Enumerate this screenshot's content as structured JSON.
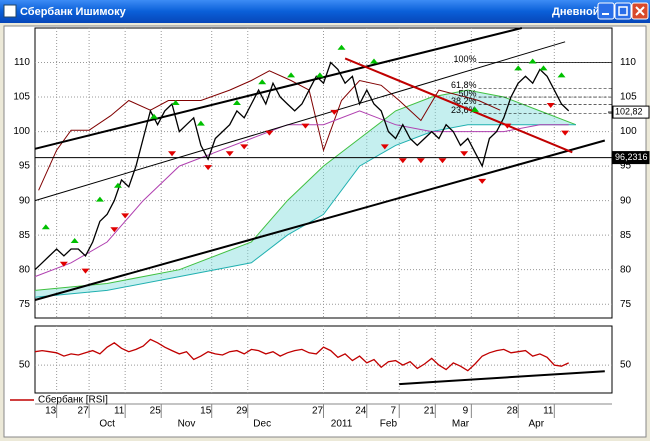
{
  "window_title": "Сбербанк Ишимоку",
  "timeframe": "Дневной",
  "chart_data": [
    {
      "type": "line",
      "xlim": [
        0,
        160
      ],
      "xticks": [
        {
          "value": 6,
          "label": "13"
        },
        {
          "value": 15,
          "label": "27"
        },
        {
          "value": 25,
          "label": "11"
        },
        {
          "value": 35,
          "label": "25"
        },
        {
          "value": 49,
          "label": "15"
        },
        {
          "value": 59,
          "label": "29"
        },
        {
          "value": 80,
          "label": "27"
        },
        {
          "value": 92,
          "label": "24"
        },
        {
          "value": 101,
          "label": "7"
        },
        {
          "value": 111,
          "label": "21"
        },
        {
          "value": 121,
          "label": "9"
        },
        {
          "value": 134,
          "label": "28"
        },
        {
          "value": 144,
          "label": "11"
        }
      ],
      "month_ticks": [
        {
          "value": 20,
          "label": "Oct"
        },
        {
          "value": 42,
          "label": "Nov"
        },
        {
          "value": 63,
          "label": "Dec"
        },
        {
          "value": 85,
          "label": "2011"
        },
        {
          "value": 98,
          "label": "Feb"
        },
        {
          "value": 118,
          "label": "Mar"
        },
        {
          "value": 139,
          "label": "Apr"
        }
      ],
      "ylim": [
        73,
        115
      ],
      "yticks": [
        75,
        80,
        85,
        90,
        95,
        100,
        105,
        110
      ],
      "grid": true,
      "series": [
        {
          "color": "#000000",
          "x": [
            0,
            2,
            4,
            6,
            8,
            10,
            12,
            14,
            16,
            18,
            20,
            22,
            24,
            26,
            28,
            30,
            32,
            34,
            36,
            38,
            40,
            42,
            44,
            46,
            48,
            50,
            52,
            54,
            56,
            58,
            60,
            62,
            64,
            66,
            68,
            70,
            72,
            74,
            76,
            78,
            80,
            82,
            84,
            86,
            88,
            90,
            92,
            94,
            96,
            98,
            100,
            102,
            104,
            106,
            108,
            110,
            112,
            114,
            116,
            118,
            120,
            122,
            124,
            126,
            128,
            130,
            132,
            134,
            136,
            138,
            140,
            142,
            144,
            146,
            148
          ],
          "values": [
            80,
            81,
            82,
            83,
            82,
            83,
            83,
            82,
            84,
            87,
            88,
            90,
            93,
            92,
            95,
            99,
            103,
            101,
            103,
            104,
            100,
            101,
            102,
            98,
            96,
            99,
            100,
            101,
            103,
            102,
            104,
            106,
            104,
            107,
            105,
            104,
            103,
            104,
            106,
            108,
            107,
            110,
            109,
            107,
            108,
            104,
            106,
            104,
            103,
            100,
            99,
            101,
            99,
            98,
            99,
            100,
            99,
            101,
            100,
            98,
            99,
            97,
            95,
            99,
            100,
            102,
            105,
            107,
            108,
            107,
            109,
            108,
            106,
            104,
            103
          ]
        }
      ],
      "lines": [
        {
          "color": "#800000",
          "x": [
            1,
            6,
            10,
            15,
            21,
            26,
            32,
            37,
            46,
            54,
            60,
            65,
            71,
            76,
            80,
            85,
            90,
            96,
            101,
            107,
            112,
            118,
            123,
            129
          ],
          "values": [
            91.5,
            97.3,
            100.2,
            100.2,
            102.3,
            104.5,
            103.1,
            104.5,
            104.5,
            106,
            107.4,
            108.8,
            107.4,
            106,
            97.3,
            104.5,
            107.4,
            106.7,
            104.5,
            101.6,
            106,
            105.2,
            104.5,
            103.1
          ]
        },
        {
          "color": "#b040b0",
          "x": [
            0,
            10,
            20,
            30,
            40,
            50,
            60,
            70,
            80,
            90,
            100,
            110,
            120,
            130,
            140,
            148
          ],
          "values": [
            79,
            81,
            84,
            90,
            95,
            97,
            99,
            101,
            101,
            103,
            101,
            100,
            100,
            100,
            101,
            101
          ]
        }
      ],
      "cloud": {
        "color": "#7fdcdc",
        "span_a": {
          "color": "#40c040",
          "x": [
            0,
            20,
            40,
            60,
            70,
            80,
            90,
            100,
            110,
            120,
            130,
            140,
            150
          ],
          "values": [
            77,
            78,
            80,
            84,
            90,
            95,
            99,
            103,
            105,
            106,
            105,
            103,
            101
          ]
        },
        "span_b": {
          "color": "#20b0b0",
          "x": [
            0,
            20,
            40,
            60,
            70,
            80,
            90,
            100,
            110,
            120,
            130,
            140,
            150
          ],
          "values": [
            76,
            77,
            79,
            81,
            85,
            88,
            95,
            98,
            100,
            101,
            101,
            101,
            101
          ]
        }
      },
      "trend_lines": [
        {
          "color": "#000000",
          "x": [
            0,
            135
          ],
          "values": [
            97.5,
            115
          ]
        },
        {
          "color": "#000000",
          "x": [
            0,
            158
          ],
          "values": [
            75.6,
            98.7
          ]
        },
        {
          "color": "#000000",
          "x": [
            0,
            147
          ],
          "values": [
            90,
            113
          ]
        },
        {
          "color": "#c00000",
          "x": [
            86,
            149
          ],
          "values": [
            110.6,
            97
          ]
        }
      ],
      "up_signals": {
        "color": "#00c000",
        "x": [
          3,
          11,
          18,
          23,
          33,
          39,
          46,
          56,
          63,
          71,
          79,
          85,
          94,
          122,
          134,
          138,
          141,
          146
        ],
        "values": [
          86,
          84,
          90,
          92,
          102,
          104,
          101,
          104,
          107,
          108,
          108,
          112,
          110,
          103,
          109,
          110,
          109,
          108
        ]
      },
      "down_signals": {
        "color": "#e00000",
        "x": [
          8,
          14,
          22,
          25,
          38,
          48,
          54,
          58,
          65,
          75,
          83,
          97,
          102,
          107,
          113,
          119,
          124,
          131,
          143,
          147
        ],
        "values": [
          81,
          80,
          86,
          88,
          97,
          95,
          97,
          98,
          100,
          101,
          103,
          98,
          96,
          96,
          96,
          97,
          93,
          101,
          104,
          100
        ]
      },
      "fib_range": [
        123,
        160
      ],
      "fib_levels": [
        {
          "value": 110,
          "label": "100%"
        },
        {
          "value": 106.2,
          "label": "61,8%"
        },
        {
          "value": 105,
          "label": "50%"
        },
        {
          "value": 103.9,
          "label": "38,2%"
        },
        {
          "value": 102.6,
          "label": "23,6%"
        }
      ],
      "price_labels": [
        {
          "value": 102.82,
          "label": "102,82"
        },
        {
          "value": 96.2316,
          "label": "96,2316"
        }
      ]
    },
    {
      "type": "line",
      "xlim": [
        0,
        160
      ],
      "ylim": [
        25,
        85
      ],
      "yticks": [
        50
      ],
      "series": [
        {
          "name": "Сбербанк [RSI]",
          "color": "#c00000",
          "x": [
            0,
            2,
            4,
            6,
            8,
            10,
            12,
            14,
            16,
            18,
            20,
            22,
            24,
            26,
            28,
            30,
            32,
            34,
            36,
            38,
            40,
            42,
            44,
            46,
            48,
            50,
            52,
            54,
            56,
            58,
            60,
            62,
            64,
            66,
            68,
            70,
            72,
            74,
            76,
            78,
            80,
            82,
            84,
            86,
            88,
            90,
            92,
            94,
            96,
            98,
            100,
            102,
            104,
            106,
            108,
            110,
            112,
            114,
            116,
            118,
            120,
            122,
            124,
            126,
            128,
            130,
            132,
            134,
            136,
            138,
            140,
            142,
            144,
            146,
            148
          ],
          "values": [
            62,
            63,
            62,
            61,
            58,
            60,
            59,
            61,
            63,
            60,
            66,
            70,
            65,
            62,
            64,
            67,
            73,
            70,
            66,
            63,
            60,
            62,
            55,
            58,
            62,
            60,
            59,
            62,
            63,
            60,
            64,
            63,
            60,
            62,
            58,
            61,
            63,
            64,
            61,
            60,
            66,
            63,
            57,
            60,
            54,
            58,
            52,
            55,
            48,
            53,
            54,
            50,
            53,
            47,
            51,
            56,
            50,
            46,
            52,
            49,
            45,
            51,
            58,
            61,
            63,
            64,
            61,
            62,
            63,
            58,
            60,
            57,
            50,
            49,
            52
          ]
        }
      ],
      "trend_lines": [
        {
          "color": "#000000",
          "x": [
            101,
            158
          ],
          "values": [
            33,
            44.5
          ]
        }
      ]
    }
  ]
}
